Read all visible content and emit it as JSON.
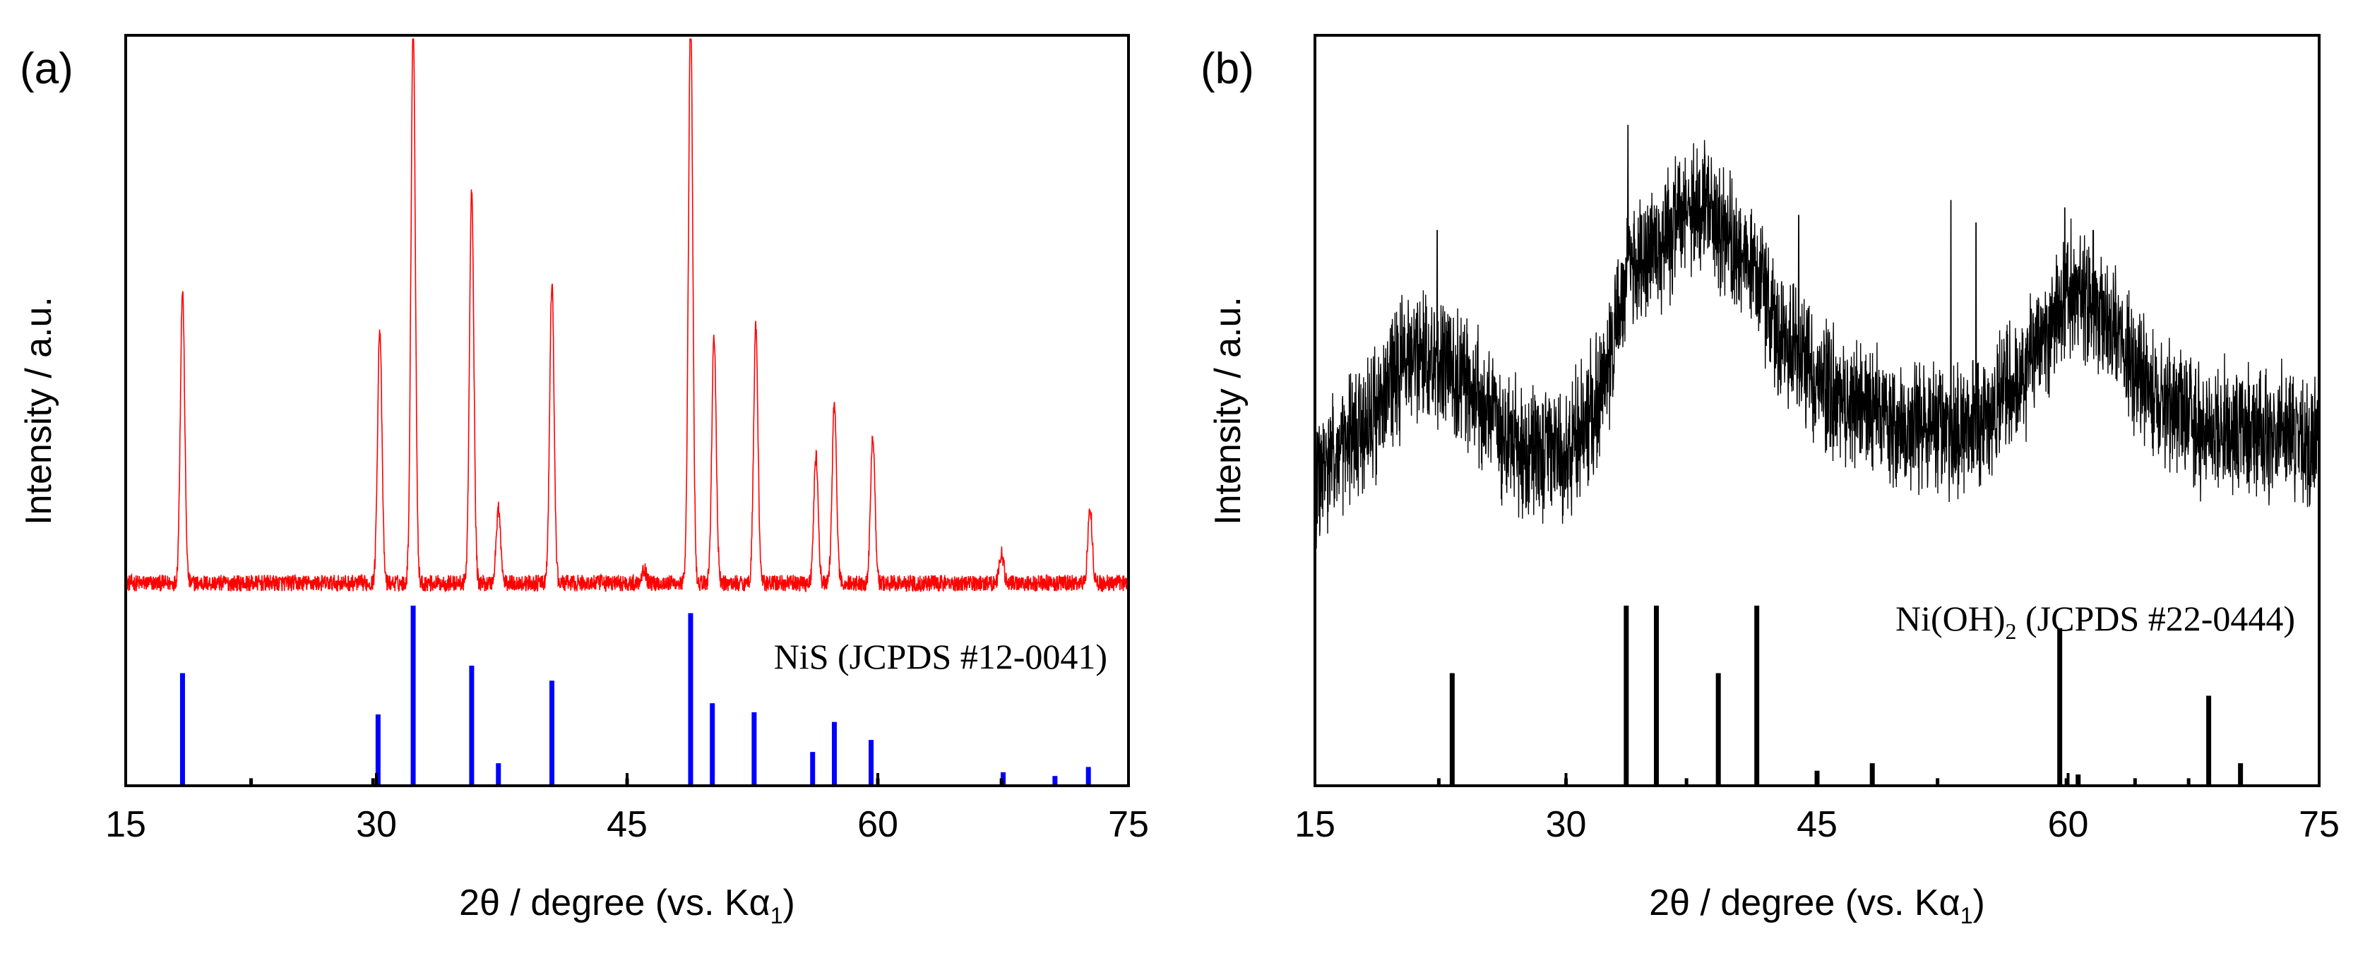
{
  "chart_data": [
    {
      "panel_label": "(a)",
      "type": "line",
      "xlabel_prefix": "2θ / degree (vs. Kα",
      "xlabel_sub": "1",
      "xlabel_suffix": ")",
      "ylabel": "Intensity / a.u.",
      "xlim": [
        15,
        75
      ],
      "xticks": [
        15,
        30,
        45,
        60,
        75
      ],
      "tick_labels": [
        "15",
        "30",
        "45",
        "60",
        "75"
      ],
      "ylim": [
        0,
        100
      ],
      "grid": false,
      "pattern": {
        "name": "measured XRD pattern",
        "color": "#ff0000",
        "baseline": 27,
        "noise": 1.1,
        "peaks": [
          {
            "x": 18.4,
            "h": 39
          },
          {
            "x": 30.2,
            "h": 34
          },
          {
            "x": 32.2,
            "h": 75
          },
          {
            "x": 35.7,
            "h": 52
          },
          {
            "x": 37.3,
            "h": 10
          },
          {
            "x": 40.5,
            "h": 40
          },
          {
            "x": 46.0,
            "h": 2
          },
          {
            "x": 48.8,
            "h": 76
          },
          {
            "x": 50.2,
            "h": 33
          },
          {
            "x": 52.7,
            "h": 34
          },
          {
            "x": 56.3,
            "h": 17
          },
          {
            "x": 57.4,
            "h": 24
          },
          {
            "x": 59.7,
            "h": 20
          },
          {
            "x": 67.4,
            "h": 4
          },
          {
            "x": 72.7,
            "h": 10
          }
        ]
      },
      "reference": {
        "label": "NiS (JCPDS #12-0041)",
        "color": "#0000ff",
        "lines": [
          {
            "x": 18.4,
            "h": 15
          },
          {
            "x": 30.1,
            "h": 9.5
          },
          {
            "x": 32.2,
            "h": 24
          },
          {
            "x": 35.7,
            "h": 16
          },
          {
            "x": 37.3,
            "h": 3
          },
          {
            "x": 40.5,
            "h": 14
          },
          {
            "x": 48.8,
            "h": 23
          },
          {
            "x": 50.1,
            "h": 11
          },
          {
            "x": 52.6,
            "h": 9.8
          },
          {
            "x": 56.1,
            "h": 4.5
          },
          {
            "x": 57.4,
            "h": 8.5
          },
          {
            "x": 59.6,
            "h": 6.1
          },
          {
            "x": 67.5,
            "h": 1.8
          },
          {
            "x": 70.6,
            "h": 1.3
          },
          {
            "x": 72.6,
            "h": 2.5
          }
        ],
        "minor": [
          22.5,
          29.8,
          45.0,
          60.0,
          67.4
        ]
      }
    },
    {
      "panel_label": "(b)",
      "type": "line",
      "xlabel_prefix": "2θ / degree (vs. Kα",
      "xlabel_sub": "1",
      "xlabel_suffix": ")",
      "ylabel": "Intensity / a.u.",
      "xlim": [
        15,
        75
      ],
      "xticks": [
        15,
        30,
        45,
        60,
        75
      ],
      "tick_labels": [
        "15",
        "30",
        "45",
        "60",
        "75"
      ],
      "ylim": [
        0,
        100
      ],
      "grid": false,
      "pattern": {
        "name": "measured XRD pattern",
        "color": "#000000",
        "envelope": [
          [
            15,
            40
          ],
          [
            18,
            48
          ],
          [
            21,
            58
          ],
          [
            24,
            54
          ],
          [
            27,
            45
          ],
          [
            30,
            44
          ],
          [
            32,
            52
          ],
          [
            34,
            70
          ],
          [
            36,
            73
          ],
          [
            38,
            78
          ],
          [
            40,
            72
          ],
          [
            43,
            60
          ],
          [
            46,
            52
          ],
          [
            50,
            48
          ],
          [
            54,
            47
          ],
          [
            57,
            54
          ],
          [
            60,
            66
          ],
          [
            62,
            63
          ],
          [
            65,
            52
          ],
          [
            68,
            48
          ],
          [
            72,
            47
          ],
          [
            75,
            46
          ]
        ],
        "noise": 6.5,
        "spikes": [
          {
            "x": 22.3,
            "h": 74
          },
          {
            "x": 33.7,
            "h": 88
          },
          {
            "x": 38.3,
            "h": 84
          },
          {
            "x": 43.9,
            "h": 76
          },
          {
            "x": 53.0,
            "h": 78
          },
          {
            "x": 54.5,
            "h": 75
          },
          {
            "x": 59.8,
            "h": 77
          },
          {
            "x": 61.5,
            "h": 74
          }
        ]
      },
      "reference": {
        "label_prefix": "Ni(OH)",
        "label_sub": "2",
        "label_suffix": " (JCPDS #22-0444)",
        "color": "#000000",
        "lines": [
          {
            "x": 23.2,
            "h": 15
          },
          {
            "x": 33.6,
            "h": 24
          },
          {
            "x": 35.4,
            "h": 24
          },
          {
            "x": 39.1,
            "h": 15
          },
          {
            "x": 41.4,
            "h": 24
          },
          {
            "x": 45.0,
            "h": 2
          },
          {
            "x": 48.3,
            "h": 3
          },
          {
            "x": 59.5,
            "h": 21
          },
          {
            "x": 60.6,
            "h": 1.5
          },
          {
            "x": 68.4,
            "h": 12
          },
          {
            "x": 70.3,
            "h": 3
          }
        ],
        "minor": [
          22.4,
          30.0,
          37.2,
          52.2,
          59.9,
          64.0,
          67.2
        ]
      }
    }
  ]
}
